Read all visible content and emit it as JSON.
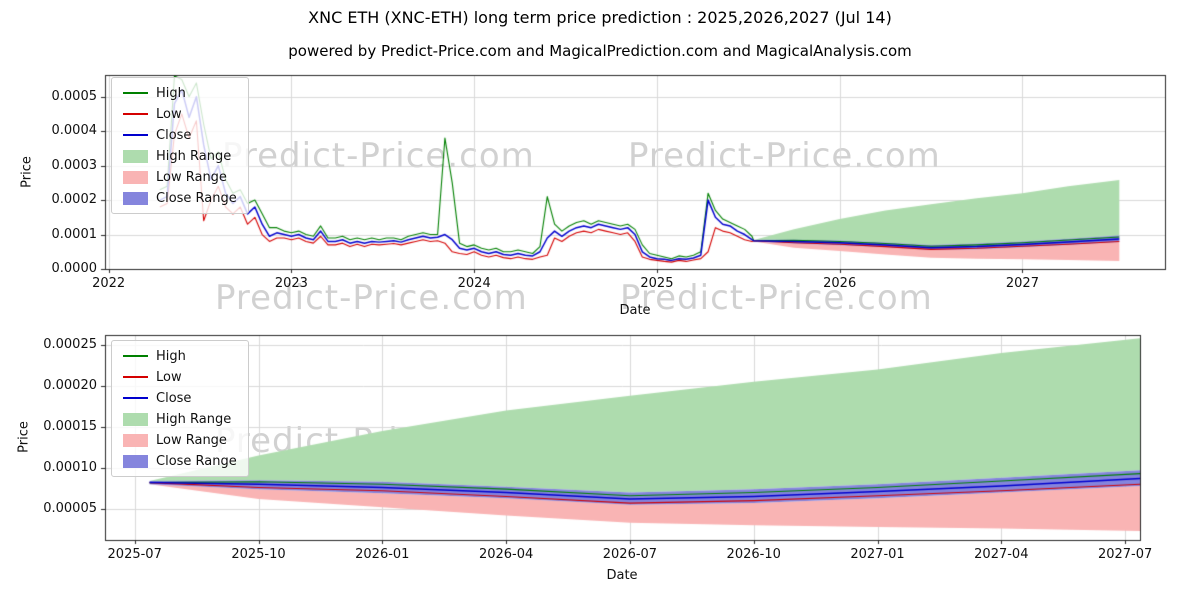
{
  "title": "XNC ETH (XNC-ETH) long term price prediction : 2025,2026,2027 (Jul 14)",
  "subtitle": "powered by Predict-Price.com and MagicalPrediction.com and MagicalAnalysis.com",
  "watermark": "Predict-Price.com",
  "legend": {
    "high": "High",
    "low": "Low",
    "close": "Close",
    "high_range": "High Range",
    "low_range": "Low Range",
    "close_range": "Close Range"
  },
  "colors": {
    "high": "#008000",
    "low": "#d40000",
    "close": "#0000cd",
    "high_range": "#aedcae",
    "low_range": "#f9b4b4",
    "close_range": "#8585dd",
    "grid": "#d9d9d9",
    "axis": "#262626",
    "background": "#ffffff"
  },
  "chart_data": [
    {
      "type": "line",
      "name": "history-and-forecast",
      "xlabel": "Date",
      "ylabel": "Price",
      "xlim": [
        2021.98,
        2027.78
      ],
      "ylim": [
        0,
        0.000563
      ],
      "grid": true,
      "legend_position": "upper left",
      "x_ticks": [
        {
          "value": 2022,
          "label": "2022"
        },
        {
          "value": 2023,
          "label": "2023"
        },
        {
          "value": 2024,
          "label": "2024"
        },
        {
          "value": 2025,
          "label": "2025"
        },
        {
          "value": 2026,
          "label": "2026"
        },
        {
          "value": 2027,
          "label": "2027"
        }
      ],
      "y_ticks": [
        {
          "value": 0,
          "label": "0.0000"
        },
        {
          "value": 0.0001,
          "label": "0.0001"
        },
        {
          "value": 0.0002,
          "label": "0.0002"
        },
        {
          "value": 0.0003,
          "label": "0.0003"
        },
        {
          "value": 0.0004,
          "label": "0.0004"
        },
        {
          "value": 0.0005,
          "label": "0.0005"
        }
      ],
      "history": {
        "x_start": 2022.28,
        "x_step": 0.04,
        "high": [
          0.00023,
          0.00024,
          0.00056,
          0.00055,
          0.0005,
          0.00054,
          0.00042,
          0.00032,
          0.00034,
          0.00026,
          0.00022,
          0.00023,
          0.00019,
          0.0002,
          0.00016,
          0.00012,
          0.00012,
          0.00011,
          0.000105,
          0.00011,
          0.0001,
          9.5e-05,
          0.000125,
          9e-05,
          9e-05,
          9.5e-05,
          8.5e-05,
          9e-05,
          8.5e-05,
          9e-05,
          8.5e-05,
          9e-05,
          9e-05,
          8.5e-05,
          9.5e-05,
          0.0001,
          0.000105,
          0.0001,
          0.0001,
          0.00038,
          0.00025,
          7.5e-05,
          6.5e-05,
          7e-05,
          6e-05,
          5.5e-05,
          6e-05,
          5e-05,
          5e-05,
          5.5e-05,
          5e-05,
          4.5e-05,
          6.5e-05,
          0.00021,
          0.00013,
          0.00011,
          0.000125,
          0.000135,
          0.00014,
          0.00013,
          0.00014,
          0.000135,
          0.00013,
          0.000125,
          0.00013,
          0.000115,
          7e-05,
          4.5e-05,
          4e-05,
          3.5e-05,
          3e-05,
          3.8e-05,
          3.5e-05,
          4e-05,
          5e-05,
          0.00022,
          0.00017,
          0.000145,
          0.000135,
          0.000125,
          0.000115,
          9.5e-05
        ],
        "low": [
          0.00018,
          0.00019,
          0.00039,
          0.00045,
          0.00038,
          0.00043,
          0.00014,
          0.0002,
          0.00024,
          0.00018,
          0.00016,
          0.00018,
          0.00013,
          0.00015,
          0.0001,
          8e-05,
          9e-05,
          9e-05,
          8.5e-05,
          9e-05,
          8e-05,
          7.5e-05,
          9.5e-05,
          7e-05,
          7e-05,
          7.5e-05,
          6.5e-05,
          7.2e-05,
          6.5e-05,
          7.2e-05,
          7e-05,
          7.2e-05,
          7.4e-05,
          7e-05,
          7.5e-05,
          8e-05,
          8.5e-05,
          8e-05,
          8.2e-05,
          7.5e-05,
          5e-05,
          4.5e-05,
          4.2e-05,
          5e-05,
          4e-05,
          3.5e-05,
          4e-05,
          3.3e-05,
          3e-05,
          3.5e-05,
          3e-05,
          2.8e-05,
          3.5e-05,
          4e-05,
          9e-05,
          8e-05,
          9.5e-05,
          0.000105,
          0.00011,
          0.000105,
          0.000115,
          0.00011,
          0.000105,
          0.0001,
          0.000105,
          8e-05,
          3.5e-05,
          2.8e-05,
          2.5e-05,
          2.2e-05,
          2e-05,
          2.5e-05,
          2.2e-05,
          2.6e-05,
          3e-05,
          5e-05,
          0.00012,
          0.00011,
          0.000105,
          9.5e-05,
          8.5e-05,
          8e-05
        ],
        "close": [
          0.0002,
          0.00021,
          0.00048,
          0.00052,
          0.00044,
          0.0005,
          0.00036,
          0.00026,
          0.0003,
          0.00022,
          0.00019,
          0.00021,
          0.00016,
          0.00018,
          0.00013,
          9.5e-05,
          0.000105,
          0.0001,
          9.5e-05,
          0.0001,
          9e-05,
          8.5e-05,
          0.00011,
          8e-05,
          8e-05,
          8.5e-05,
          7.5e-05,
          8e-05,
          7.5e-05,
          8e-05,
          7.8e-05,
          8e-05,
          8.2e-05,
          7.8e-05,
          8.5e-05,
          9e-05,
          9.5e-05,
          9e-05,
          9.2e-05,
          0.0001,
          8.5e-05,
          6e-05,
          5.5e-05,
          6e-05,
          5e-05,
          4.5e-05,
          5e-05,
          4.2e-05,
          4e-05,
          4.5e-05,
          4e-05,
          3.8e-05,
          5e-05,
          9e-05,
          0.00011,
          9.5e-05,
          0.00011,
          0.00012,
          0.000125,
          0.00012,
          0.00013,
          0.000125,
          0.00012,
          0.000115,
          0.00012,
          0.0001,
          5e-05,
          3.5e-05,
          3e-05,
          2.8e-05,
          2.5e-05,
          3e-05,
          2.8e-05,
          3.2e-05,
          4e-05,
          0.0002,
          0.00015,
          0.00013,
          0.000125,
          0.00011,
          0.0001,
          8.5e-05
        ]
      },
      "forecast": {
        "x": [
          2025.53,
          2025.75,
          2026.0,
          2026.25,
          2026.5,
          2026.75,
          2027.0,
          2027.25,
          2027.53
        ],
        "close": [
          8.2e-05,
          8e-05,
          7.6e-05,
          7e-05,
          6.2e-05,
          6.5e-05,
          7.1e-05,
          7.8e-05,
          8.7e-05
        ],
        "high_line": [
          8.2e-05,
          8.3e-05,
          8e-05,
          7.4e-05,
          6.6e-05,
          7e-05,
          7.6e-05,
          8.4e-05,
          9.3e-05
        ],
        "low_line": [
          8.2e-05,
          7.6e-05,
          7.2e-05,
          6.5e-05,
          5.7e-05,
          6e-05,
          6.6e-05,
          7.2e-05,
          8e-05
        ],
        "high_range_top": [
          8.4e-05,
          0.000115,
          0.000145,
          0.00017,
          0.000188,
          0.000205,
          0.00022,
          0.00024,
          0.000258
        ],
        "low_range_bottom": [
          8e-05,
          6.2e-05,
          5.2e-05,
          4.2e-05,
          3.3e-05,
          3e-05,
          2.8e-05,
          2.6e-05,
          2.3e-05
        ],
        "close_range_top": [
          8.4e-05,
          8.5e-05,
          8.3e-05,
          7.7e-05,
          7e-05,
          7.4e-05,
          8e-05,
          8.8e-05,
          9.7e-05
        ],
        "close_range_bottom": [
          8e-05,
          7.4e-05,
          6.9e-05,
          6.3e-05,
          5.5e-05,
          5.7e-05,
          6.3e-05,
          7e-05,
          7.8e-05
        ]
      }
    },
    {
      "type": "line",
      "name": "forecast-zoom",
      "xlabel": "Date",
      "ylabel": "Price",
      "xlim": [
        2025.44,
        2027.53
      ],
      "ylim": [
        1.2e-05,
        0.000262
      ],
      "grid": true,
      "legend_position": "upper left",
      "x_ticks": [
        {
          "value": 2025.5,
          "label": "2025-07"
        },
        {
          "value": 2025.75,
          "label": "2025-10"
        },
        {
          "value": 2026.0,
          "label": "2026-01"
        },
        {
          "value": 2026.25,
          "label": "2026-04"
        },
        {
          "value": 2026.5,
          "label": "2026-07"
        },
        {
          "value": 2026.75,
          "label": "2026-10"
        },
        {
          "value": 2027.0,
          "label": "2027-01"
        },
        {
          "value": 2027.25,
          "label": "2027-04"
        },
        {
          "value": 2027.5,
          "label": "2027-07"
        }
      ],
      "y_ticks": [
        {
          "value": 5e-05,
          "label": "0.00005"
        },
        {
          "value": 0.0001,
          "label": "0.00010"
        },
        {
          "value": 0.00015,
          "label": "0.00015"
        },
        {
          "value": 0.0002,
          "label": "0.00020"
        },
        {
          "value": 0.00025,
          "label": "0.00025"
        }
      ],
      "forecast": {
        "x": [
          2025.53,
          2025.75,
          2026.0,
          2026.25,
          2026.5,
          2026.75,
          2027.0,
          2027.25,
          2027.53
        ],
        "close": [
          8.2e-05,
          8e-05,
          7.6e-05,
          7e-05,
          6.2e-05,
          6.5e-05,
          7.1e-05,
          7.8e-05,
          8.7e-05
        ],
        "high_line": [
          8.2e-05,
          8.3e-05,
          8e-05,
          7.4e-05,
          6.6e-05,
          7e-05,
          7.6e-05,
          8.4e-05,
          9.3e-05
        ],
        "low_line": [
          8.2e-05,
          7.6e-05,
          7.2e-05,
          6.5e-05,
          5.7e-05,
          6e-05,
          6.6e-05,
          7.2e-05,
          8e-05
        ],
        "high_range_top": [
          8.4e-05,
          0.000115,
          0.000145,
          0.00017,
          0.000188,
          0.000205,
          0.00022,
          0.00024,
          0.000258
        ],
        "low_range_bottom": [
          8e-05,
          6.2e-05,
          5.2e-05,
          4.2e-05,
          3.3e-05,
          3e-05,
          2.8e-05,
          2.6e-05,
          2.3e-05
        ],
        "close_range_top": [
          8.4e-05,
          8.5e-05,
          8.3e-05,
          7.7e-05,
          7e-05,
          7.4e-05,
          8e-05,
          8.8e-05,
          9.7e-05
        ],
        "close_range_bottom": [
          8e-05,
          7.4e-05,
          6.9e-05,
          6.3e-05,
          5.5e-05,
          5.7e-05,
          6.3e-05,
          7e-05,
          7.8e-05
        ]
      }
    }
  ]
}
